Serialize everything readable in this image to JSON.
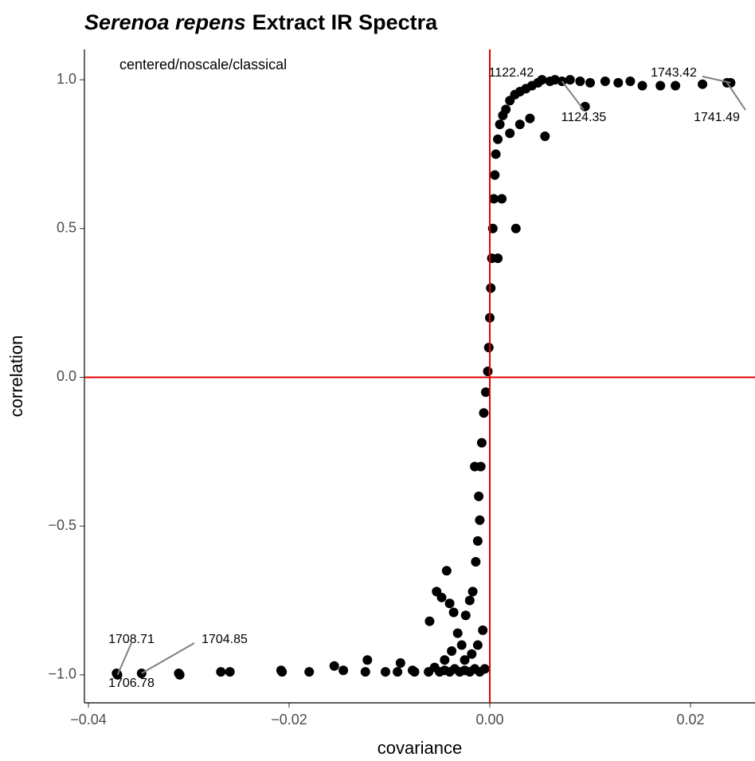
{
  "chart_data": {
    "type": "scatter",
    "title_parts": [
      {
        "text": "Serenoa repens",
        "italic": true
      },
      {
        "text": "Extract IR Spectra",
        "italic": false
      }
    ],
    "annotation": "centered/noscale/classical",
    "x_label": "covariance",
    "y_label": "correlation",
    "xlim": [
      -0.0404,
      0.02643
    ],
    "ylim": [
      -1.094,
      1.102
    ],
    "xticks": [
      {
        "value": -0.04,
        "label": "−0.04"
      },
      {
        "value": -0.02,
        "label": "−0.02"
      },
      {
        "value": 0,
        "label": "0.00"
      },
      {
        "value": 0.02,
        "label": "0.02"
      }
    ],
    "yticks": [
      {
        "value": -1,
        "label": "−1.0"
      },
      {
        "value": -0.5,
        "label": "−0.5"
      },
      {
        "value": 0,
        "label": "0.0"
      },
      {
        "value": 0.5,
        "label": "0.5"
      },
      {
        "value": 1,
        "label": "1.0"
      }
    ],
    "reference_color": "#e00000",
    "hlines": [
      0
    ],
    "vlines": [
      0
    ],
    "color": "#000000",
    "x": [
      -0.031,
      -0.0309,
      -0.0268,
      -0.0259,
      -0.0208,
      -0.0207,
      -0.018,
      -0.0155,
      -0.0146,
      -0.0124,
      -0.0122,
      -0.0104,
      -0.0092,
      -0.0089,
      -0.0077,
      -0.0075,
      -0.0061,
      -0.0055,
      -0.005,
      -0.0045,
      -0.004,
      -0.0035,
      -0.003,
      -0.0025,
      -0.002,
      -0.0015,
      -0.001,
      -0.0005,
      -0.006,
      -0.0053,
      -0.0048,
      -0.0043,
      -0.004,
      -0.0036,
      -0.0032,
      -0.0028,
      -0.0024,
      -0.002,
      -0.0017,
      -0.0014,
      -0.0012,
      -0.001,
      -0.0011,
      -0.0009,
      -0.0008,
      -0.0006,
      -0.0004,
      -0.0002,
      -0.0001,
      0.0,
      0.0001,
      0.0002,
      0.0003,
      0.0004,
      0.0005,
      0.0006,
      0.0008,
      0.001,
      0.0013,
      0.0016,
      0.002,
      0.0025,
      0.003,
      0.0036,
      0.0042,
      0.0048,
      0.006,
      0.0065,
      0.008,
      0.009,
      0.01,
      0.0115,
      0.0128,
      0.014,
      0.0152,
      0.017,
      0.0185,
      0.0212,
      0.0095,
      0.0055,
      0.0026,
      0.002,
      0.003,
      0.004,
      0.0012,
      0.0008,
      -0.0025,
      -0.0018,
      -0.0012,
      -0.0007,
      -0.0045,
      -0.0038,
      -0.0015
    ],
    "y": [
      -0.995,
      -1.0,
      -0.99,
      -0.99,
      -0.985,
      -0.99,
      -0.99,
      -0.97,
      -0.985,
      -0.99,
      -0.95,
      -0.99,
      -0.99,
      -0.96,
      -0.985,
      -0.99,
      -0.99,
      -0.975,
      -0.99,
      -0.985,
      -0.99,
      -0.98,
      -0.99,
      -0.985,
      -0.99,
      -0.98,
      -0.99,
      -0.98,
      -0.82,
      -0.72,
      -0.74,
      -0.65,
      -0.76,
      -0.79,
      -0.86,
      -0.9,
      -0.8,
      -0.75,
      -0.72,
      -0.62,
      -0.55,
      -0.48,
      -0.4,
      -0.3,
      -0.22,
      -0.12,
      -0.05,
      0.02,
      0.1,
      0.2,
      0.3,
      0.4,
      0.5,
      0.6,
      0.68,
      0.75,
      0.8,
      0.85,
      0.88,
      0.9,
      0.93,
      0.95,
      0.96,
      0.97,
      0.98,
      0.99,
      0.995,
      1.0,
      1.0,
      0.995,
      0.99,
      0.995,
      0.99,
      0.995,
      0.98,
      0.98,
      0.98,
      0.985,
      0.91,
      0.81,
      0.5,
      0.82,
      0.85,
      0.87,
      0.6,
      0.4,
      -0.95,
      -0.93,
      -0.9,
      -0.85,
      -0.95,
      -0.92,
      -0.3
    ],
    "point_labels": [
      {
        "label": "1122.42",
        "x": 0.0052,
        "y": 1.0
      },
      {
        "label": "1124.35",
        "x": 0.0072,
        "y": 0.995
      },
      {
        "label": "1743.42",
        "x": 0.024,
        "y": 0.99
      },
      {
        "label": "1741.49",
        "x": 0.02365,
        "y": 0.99
      },
      {
        "label": "1708.71",
        "x": -0.0371,
        "y": -1.0
      },
      {
        "label": "1706.78",
        "x": -0.0372,
        "y": -0.995
      },
      {
        "label": "1704.85",
        "x": -0.0347,
        "y": -0.995
      }
    ]
  }
}
